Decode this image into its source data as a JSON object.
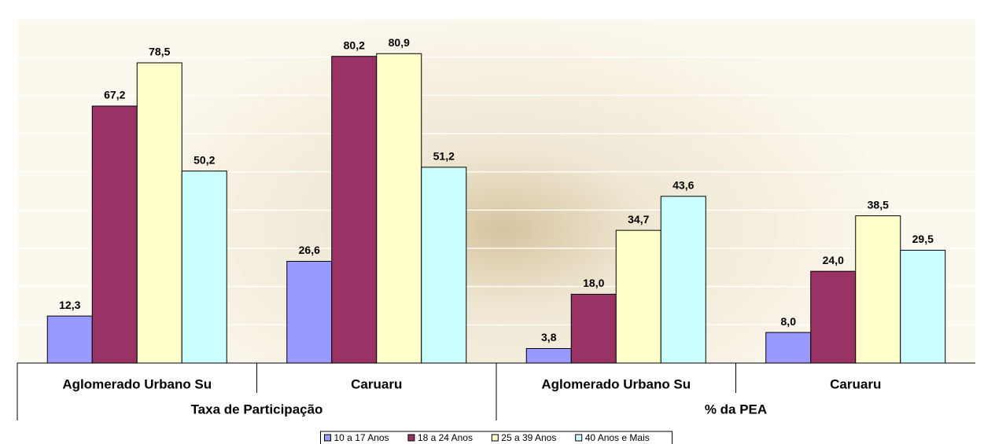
{
  "chart_data": {
    "type": "bar",
    "categories": [
      "Aglomerado Urbano Su",
      "Caruaru",
      "Aglomerado Urbano Su",
      "Caruaru"
    ],
    "group_labels": [
      "Taxa de Participação",
      "% da PEA"
    ],
    "series": [
      {
        "name": "10 a 17 Anos",
        "color": "#9999ff",
        "values": [
          12.3,
          26.6,
          3.8,
          8.0
        ],
        "value_labels": [
          "12,3",
          "26,6",
          "3,8",
          "8,0"
        ]
      },
      {
        "name": "18 a 24 Anos",
        "color": "#993366",
        "values": [
          67.2,
          80.2,
          18.0,
          24.0
        ],
        "value_labels": [
          "67,2",
          "80,2",
          "18,0",
          "24,0"
        ]
      },
      {
        "name": "25 a 39 Anos",
        "color": "#ffffcc",
        "values": [
          78.5,
          80.9,
          34.7,
          38.5
        ],
        "value_labels": [
          "78,5",
          "80,9",
          "34,7",
          "38,5"
        ]
      },
      {
        "name": "40 Anos e Mais",
        "color": "#ccffff",
        "values": [
          50.2,
          51.2,
          43.6,
          29.5
        ],
        "value_labels": [
          "50,2",
          "51,2",
          "43,6",
          "29,5"
        ]
      }
    ],
    "ylim": [
      0,
      90
    ],
    "yticks": [
      0,
      10,
      20,
      30,
      40,
      50,
      60,
      70,
      80,
      90
    ],
    "grid": true,
    "legend": "bottom"
  }
}
